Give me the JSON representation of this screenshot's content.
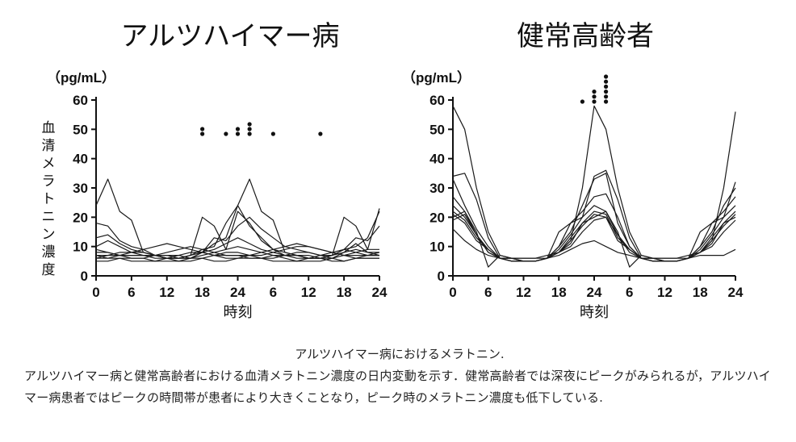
{
  "chart_data": [
    {
      "type": "line",
      "title": "アルツハイマー病",
      "unit": "（pg/mL）",
      "ylabel": "血清メラトニン濃度",
      "xlabel": "時刻",
      "ylim": [
        0,
        60
      ],
      "yticks": [
        "0",
        "10",
        "20",
        "30",
        "40",
        "50",
        "60"
      ],
      "xticks": [
        "0",
        "6",
        "12",
        "18",
        "24",
        "6",
        "12",
        "18",
        "24"
      ],
      "x": [
        0,
        2,
        4,
        6,
        8,
        10,
        12,
        14,
        16,
        18,
        20,
        22,
        24,
        26,
        28,
        30,
        32,
        34,
        36,
        38,
        40,
        42,
        44,
        46,
        48
      ],
      "series": [
        {
          "values": [
            24,
            33,
            22,
            19,
            8,
            7,
            6,
            6,
            7,
            9,
            10,
            18,
            24,
            33,
            22,
            19,
            8,
            7,
            7,
            6,
            7,
            9,
            10,
            13,
            22
          ]
        },
        {
          "values": [
            18,
            17,
            12,
            10,
            9,
            7,
            6,
            6,
            7,
            20,
            17,
            9,
            22,
            18,
            12,
            9,
            8,
            7,
            6,
            6,
            7,
            20,
            17,
            9,
            23
          ]
        },
        {
          "values": [
            13,
            14,
            11,
            9,
            8,
            7,
            7,
            6,
            6,
            8,
            13,
            12,
            17,
            20,
            16,
            13,
            10,
            9,
            8,
            7,
            7,
            9,
            13,
            12,
            17
          ]
        },
        {
          "values": [
            10,
            12,
            10,
            8,
            7,
            7,
            6,
            6,
            6,
            8,
            11,
            13,
            24,
            17,
            13,
            9,
            7,
            7,
            6,
            6,
            6,
            8,
            11,
            8,
            7
          ]
        },
        {
          "values": [
            8,
            8,
            7,
            7,
            7,
            6,
            6,
            6,
            7,
            8,
            9,
            11,
            13,
            11,
            9,
            8,
            7,
            6,
            6,
            6,
            7,
            8,
            9,
            8,
            8
          ]
        },
        {
          "values": [
            7,
            7,
            7,
            7,
            7,
            7,
            8,
            9,
            10,
            9,
            8,
            7,
            7,
            7,
            7,
            8,
            9,
            10,
            10,
            9,
            8,
            7,
            7,
            7,
            7
          ]
        },
        {
          "values": [
            6,
            6,
            7,
            8,
            9,
            10,
            11,
            10,
            9,
            8,
            7,
            6,
            6,
            7,
            8,
            9,
            10,
            11,
            10,
            9,
            8,
            7,
            6,
            6,
            6
          ]
        },
        {
          "values": [
            9,
            8,
            7,
            6,
            6,
            5,
            5,
            5,
            6,
            7,
            8,
            9,
            10,
            9,
            8,
            7,
            6,
            5,
            5,
            5,
            6,
            7,
            8,
            9,
            9
          ]
        },
        {
          "values": [
            5,
            5,
            6,
            6,
            6,
            7,
            7,
            7,
            6,
            6,
            5,
            5,
            6,
            6,
            6,
            7,
            7,
            7,
            6,
            6,
            5,
            5,
            6,
            6,
            6
          ]
        },
        {
          "values": [
            7,
            6,
            6,
            5,
            5,
            5,
            6,
            7,
            8,
            8,
            7,
            7,
            7,
            6,
            6,
            5,
            5,
            5,
            6,
            7,
            8,
            9,
            8,
            7,
            7
          ]
        },
        {
          "values": [
            6,
            7,
            8,
            8,
            8,
            7,
            6,
            5,
            5,
            6,
            7,
            8,
            8,
            7,
            6,
            6,
            7,
            8,
            8,
            7,
            6,
            5,
            6,
            7,
            8
          ]
        }
      ],
      "peak_dots": [
        {
          "x": 18,
          "count": 2
        },
        {
          "x": 22,
          "count": 1
        },
        {
          "x": 24,
          "count": 2
        },
        {
          "x": 26,
          "count": 3
        },
        {
          "x": 30,
          "count": 1
        },
        {
          "x": 38,
          "count": 1
        }
      ]
    },
    {
      "type": "line",
      "title": "健常高齢者",
      "unit": "（pg/mL）",
      "ylabel": "",
      "xlabel": "時刻",
      "ylim": [
        0,
        60
      ],
      "yticks": [
        "0",
        "10",
        "20",
        "30",
        "40",
        "50",
        "60"
      ],
      "xticks": [
        "0",
        "6",
        "12",
        "18",
        "24",
        "6",
        "12",
        "18",
        "24"
      ],
      "x": [
        0,
        2,
        4,
        6,
        8,
        10,
        12,
        14,
        16,
        18,
        20,
        22,
        24,
        26,
        28,
        30,
        32,
        34,
        36,
        38,
        40,
        42,
        44,
        46,
        48
      ],
      "series": [
        {
          "values": [
            58,
            50,
            30,
            15,
            7,
            6,
            6,
            6,
            7,
            8,
            12,
            30,
            58,
            50,
            30,
            15,
            7,
            6,
            6,
            6,
            7,
            8,
            12,
            30,
            56
          ]
        },
        {
          "values": [
            34,
            35,
            26,
            13,
            6,
            5,
            5,
            5,
            6,
            15,
            18,
            20,
            34,
            36,
            26,
            13,
            6,
            5,
            5,
            5,
            6,
            15,
            18,
            20,
            32
          ]
        },
        {
          "values": [
            33,
            24,
            16,
            10,
            6,
            5,
            5,
            5,
            6,
            10,
            15,
            24,
            33,
            35,
            18,
            10,
            6,
            5,
            5,
            5,
            6,
            10,
            15,
            24,
            30
          ]
        },
        {
          "values": [
            27,
            22,
            14,
            8,
            6,
            5,
            5,
            5,
            6,
            10,
            18,
            22,
            27,
            28,
            20,
            10,
            6,
            5,
            5,
            5,
            6,
            10,
            18,
            22,
            27
          ]
        },
        {
          "values": [
            24,
            20,
            14,
            9,
            6,
            6,
            5,
            5,
            6,
            9,
            14,
            20,
            24,
            22,
            14,
            9,
            6,
            6,
            5,
            5,
            6,
            9,
            14,
            20,
            24
          ]
        },
        {
          "values": [
            22,
            19,
            13,
            9,
            6,
            6,
            5,
            5,
            6,
            8,
            13,
            18,
            22,
            21,
            13,
            9,
            6,
            6,
            5,
            5,
            6,
            8,
            13,
            18,
            22
          ]
        },
        {
          "values": [
            21,
            18,
            12,
            9,
            6,
            5,
            5,
            5,
            6,
            8,
            12,
            17,
            21,
            20,
            12,
            9,
            6,
            5,
            5,
            5,
            6,
            8,
            12,
            17,
            21
          ]
        },
        {
          "values": [
            20,
            22,
            15,
            3,
            7,
            6,
            5,
            5,
            6,
            8,
            11,
            18,
            20,
            22,
            15,
            3,
            7,
            6,
            5,
            5,
            6,
            8,
            11,
            18,
            20
          ]
        },
        {
          "values": [
            19,
            21,
            14,
            8,
            6,
            5,
            5,
            5,
            6,
            8,
            10,
            15,
            19,
            20,
            14,
            8,
            6,
            5,
            5,
            5,
            6,
            8,
            10,
            15,
            19
          ]
        },
        {
          "values": [
            16,
            12,
            9,
            7,
            6,
            6,
            6,
            6,
            6,
            7,
            9,
            11,
            12,
            10,
            8,
            7,
            6,
            6,
            6,
            6,
            6,
            7,
            7,
            7,
            9
          ]
        }
      ],
      "peak_dots": [
        {
          "x": 22,
          "count": 1
        },
        {
          "x": 24,
          "count": 3
        },
        {
          "x": 26,
          "count": 6
        }
      ]
    }
  ],
  "caption": {
    "title": "アルツハイマー病におけるメラトニン.",
    "body": "アルツハイマー病と健常高齢者における血清メラトニン濃度の日内変動を示す．健常高齢者では深夜にピークがみられるが，アルツハイマー病患者ではピークの時間帯が患者により大きくことなり，ピーク時のメラトニン濃度も低下している."
  }
}
